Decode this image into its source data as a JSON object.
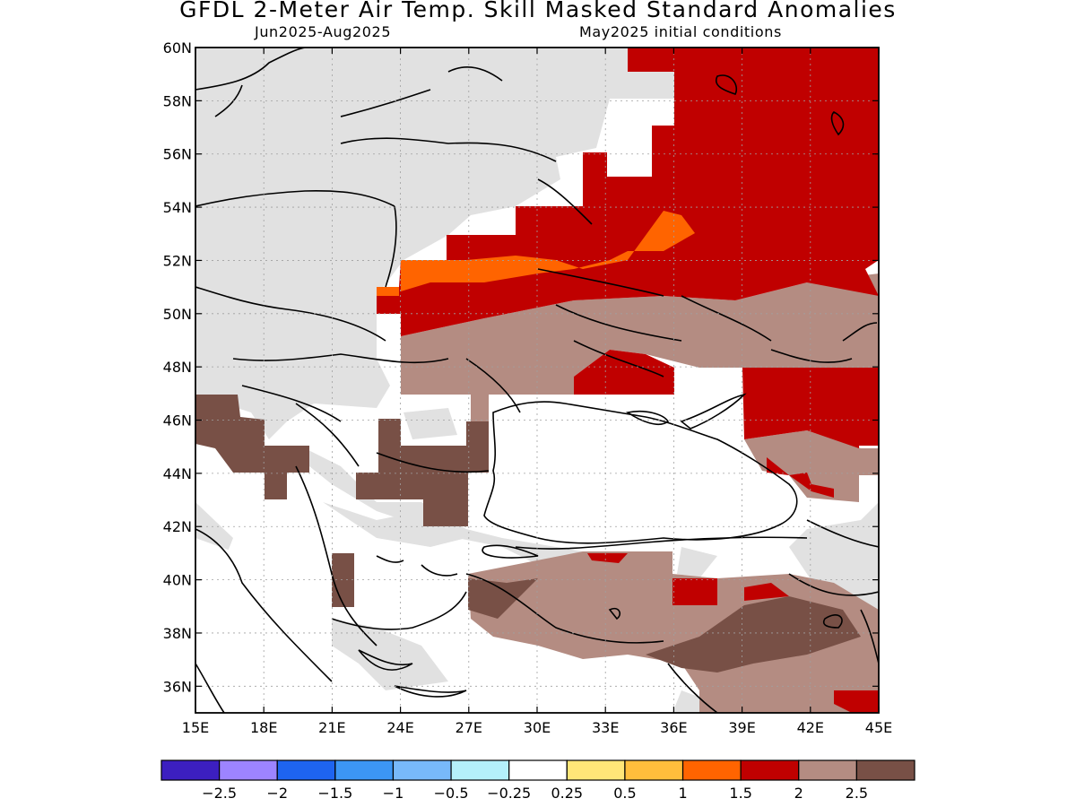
{
  "title": "GFDL 2-Meter Air Temp. Skill Masked Standard Anomalies",
  "subtitle_left": "Jun2025-Aug2025",
  "subtitle_right": "May2025 initial conditions",
  "map": {
    "lon_range": [
      15,
      45
    ],
    "lat_range": [
      35,
      60
    ],
    "x_ticks": [
      "15E",
      "18E",
      "21E",
      "24E",
      "27E",
      "30E",
      "33E",
      "36E",
      "39E",
      "42E",
      "45E"
    ],
    "y_ticks": [
      "36N",
      "38N",
      "40N",
      "42N",
      "44N",
      "46N",
      "48N",
      "50N",
      "52N",
      "54N",
      "56N",
      "58N",
      "60N"
    ],
    "grid": true
  },
  "colorbar": {
    "colors": [
      "#3c1fc0",
      "#9d84ff",
      "#1e64f0",
      "#3c96f5",
      "#78b9fa",
      "#b4f0fa",
      "#ffffff",
      "#ffe678",
      "#ffbe3c",
      "#ff6400",
      "#c00000",
      "#b48c82",
      "#785046"
    ],
    "labels": [
      "-2.5",
      "-2",
      "-1.5",
      "-1",
      "-0.5",
      "-0.25",
      "0.25",
      "0.5",
      "1",
      "1.5",
      "2",
      "2.5"
    ]
  },
  "anomaly_colors": {
    "masked": "#e1e1e1",
    "tan": "#b48c82",
    "dark_brown": "#785046",
    "red": "#c00000",
    "orange": "#ff6400"
  }
}
